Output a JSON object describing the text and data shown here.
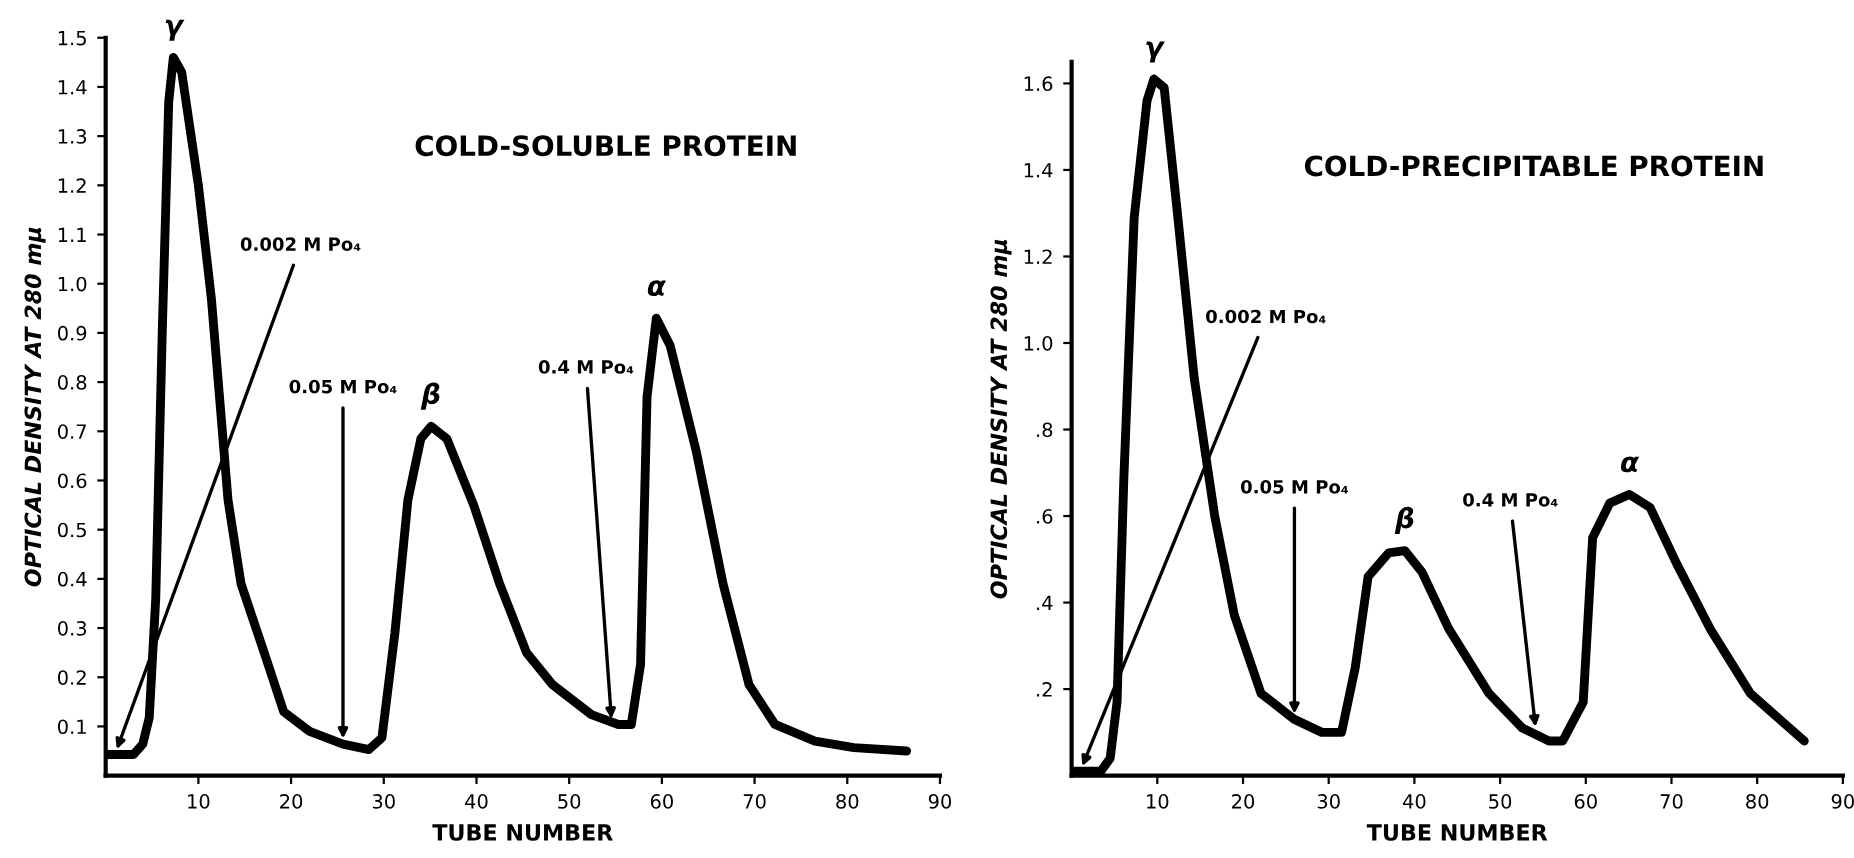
{
  "chart_data": [
    {
      "type": "line",
      "title": "COLD-SOLUBLE PROTEIN",
      "xlabel": "TUBE NUMBER",
      "ylabel": "OPTICAL DENSITY AT 280 mμ",
      "x": [
        0,
        3,
        4.0,
        4.7,
        5.4,
        6.1,
        6.8,
        7.3,
        8.2,
        10,
        11.4,
        13.2,
        14.6,
        17.1,
        19.2,
        22,
        25.6,
        28.4,
        29.8,
        31.2,
        32.6,
        34,
        35.1,
        36.8,
        39.7,
        42.5,
        45.4,
        48.2,
        52.4,
        55.3,
        56.7,
        57.7,
        58.4,
        59.4,
        60.9,
        63.7,
        66.6,
        69.4,
        72.2,
        76.5,
        80.7,
        86.4
      ],
      "series": [
        {
          "color": "#000000",
          "values": [
            0.043,
            0.043,
            0.064,
            0.118,
            0.36,
            0.9,
            1.37,
            1.46,
            1.43,
            1.2,
            0.97,
            0.56,
            0.39,
            0.25,
            0.13,
            0.09,
            0.064,
            0.053,
            0.077,
            0.29,
            0.56,
            0.685,
            0.71,
            0.685,
            0.55,
            0.39,
            0.25,
            0.185,
            0.124,
            0.104,
            0.104,
            0.226,
            0.77,
            0.93,
            0.874,
            0.66,
            0.39,
            0.185,
            0.104,
            0.07,
            0.057,
            0.05
          ]
        }
      ],
      "xlim": [
        0,
        90
      ],
      "xticks": [
        10,
        20,
        30,
        40,
        50,
        60,
        70,
        80,
        90
      ],
      "ylim": [
        0,
        1.5
      ],
      "yticks": [
        0.1,
        0.2,
        0.3,
        0.4,
        0.5,
        0.6,
        0.7,
        0.8,
        0.9,
        {
          "value": 1.0,
          "label": "1.0"
        },
        1.1,
        1.2,
        1.3,
        1.4,
        1.5
      ],
      "grid": false,
      "legend": false,
      "marker": "none",
      "line_style": "solid",
      "annotations": [
        {
          "text": "γ",
          "x": 7.3,
          "y": 1.46
        },
        {
          "text": "β",
          "x": 35.1,
          "y": 0.71
        },
        {
          "text": "α",
          "x": 59.4,
          "y": 0.93
        },
        {
          "text": "0.002 M Po₄",
          "x": 1.0,
          "y": 0.043
        },
        {
          "text": "0.05 M Po₄",
          "x": 25.6,
          "y": 0.064
        },
        {
          "text": "0.4 M Po₄",
          "x": 54.6,
          "y": 0.104
        }
      ]
    },
    {
      "type": "line",
      "title": "COLD-PRECIPITABLE PROTEIN",
      "xlabel": "TUBE NUMBER",
      "ylabel": "OPTICAL DENSITY AT 280 mμ",
      "x": [
        0,
        3.4,
        4.5,
        5.3,
        6.1,
        7.3,
        8.8,
        9.6,
        10.8,
        12.4,
        14.3,
        16.7,
        19,
        22.1,
        26,
        29.2,
        31.5,
        33.1,
        34.6,
        37,
        38.9,
        40.9,
        44,
        48.7,
        52.6,
        55.7,
        57.3,
        59.7,
        60.8,
        62.8,
        65.1,
        67.5,
        70.6,
        74.5,
        79.2,
        85.5
      ],
      "series": [
        {
          "color": "#000000",
          "values": [
            0.01,
            0.01,
            0.04,
            0.17,
            0.69,
            1.29,
            1.56,
            1.61,
            1.59,
            1.29,
            0.92,
            0.6,
            0.37,
            0.19,
            0.13,
            0.1,
            0.1,
            0.25,
            0.46,
            0.515,
            0.52,
            0.47,
            0.34,
            0.19,
            0.11,
            0.08,
            0.08,
            0.17,
            0.55,
            0.63,
            0.65,
            0.62,
            0.49,
            0.34,
            0.19,
            0.08
          ]
        }
      ],
      "xlim": [
        0,
        90
      ],
      "xticks": [
        10,
        20,
        30,
        40,
        50,
        60,
        70,
        80,
        90
      ],
      "ylim": [
        0,
        1.65
      ],
      "yticks": [
        {
          "value": 0.2,
          "label": ".2"
        },
        {
          "value": 0.4,
          "label": ".4"
        },
        {
          "value": 0.6,
          "label": ".6"
        },
        {
          "value": 0.8,
          "label": ".8"
        },
        {
          "value": 1.0,
          "label": "1.0"
        },
        1.2,
        1.4,
        1.6
      ],
      "grid": false,
      "legend": false,
      "marker": "none",
      "line_style": "solid",
      "annotations": [
        {
          "text": "γ",
          "x": 9.6,
          "y": 1.61
        },
        {
          "text": "β",
          "x": 38.9,
          "y": 0.52
        },
        {
          "text": "α",
          "x": 65.1,
          "y": 0.65
        },
        {
          "text": "0.002 M Po₄",
          "x": 1.0,
          "y": 0.01
        },
        {
          "text": "0.05 M Po₄",
          "x": 26,
          "y": 0.13
        },
        {
          "text": "0.4 M Po₄",
          "x": 54.2,
          "y": 0.1
        }
      ]
    }
  ]
}
